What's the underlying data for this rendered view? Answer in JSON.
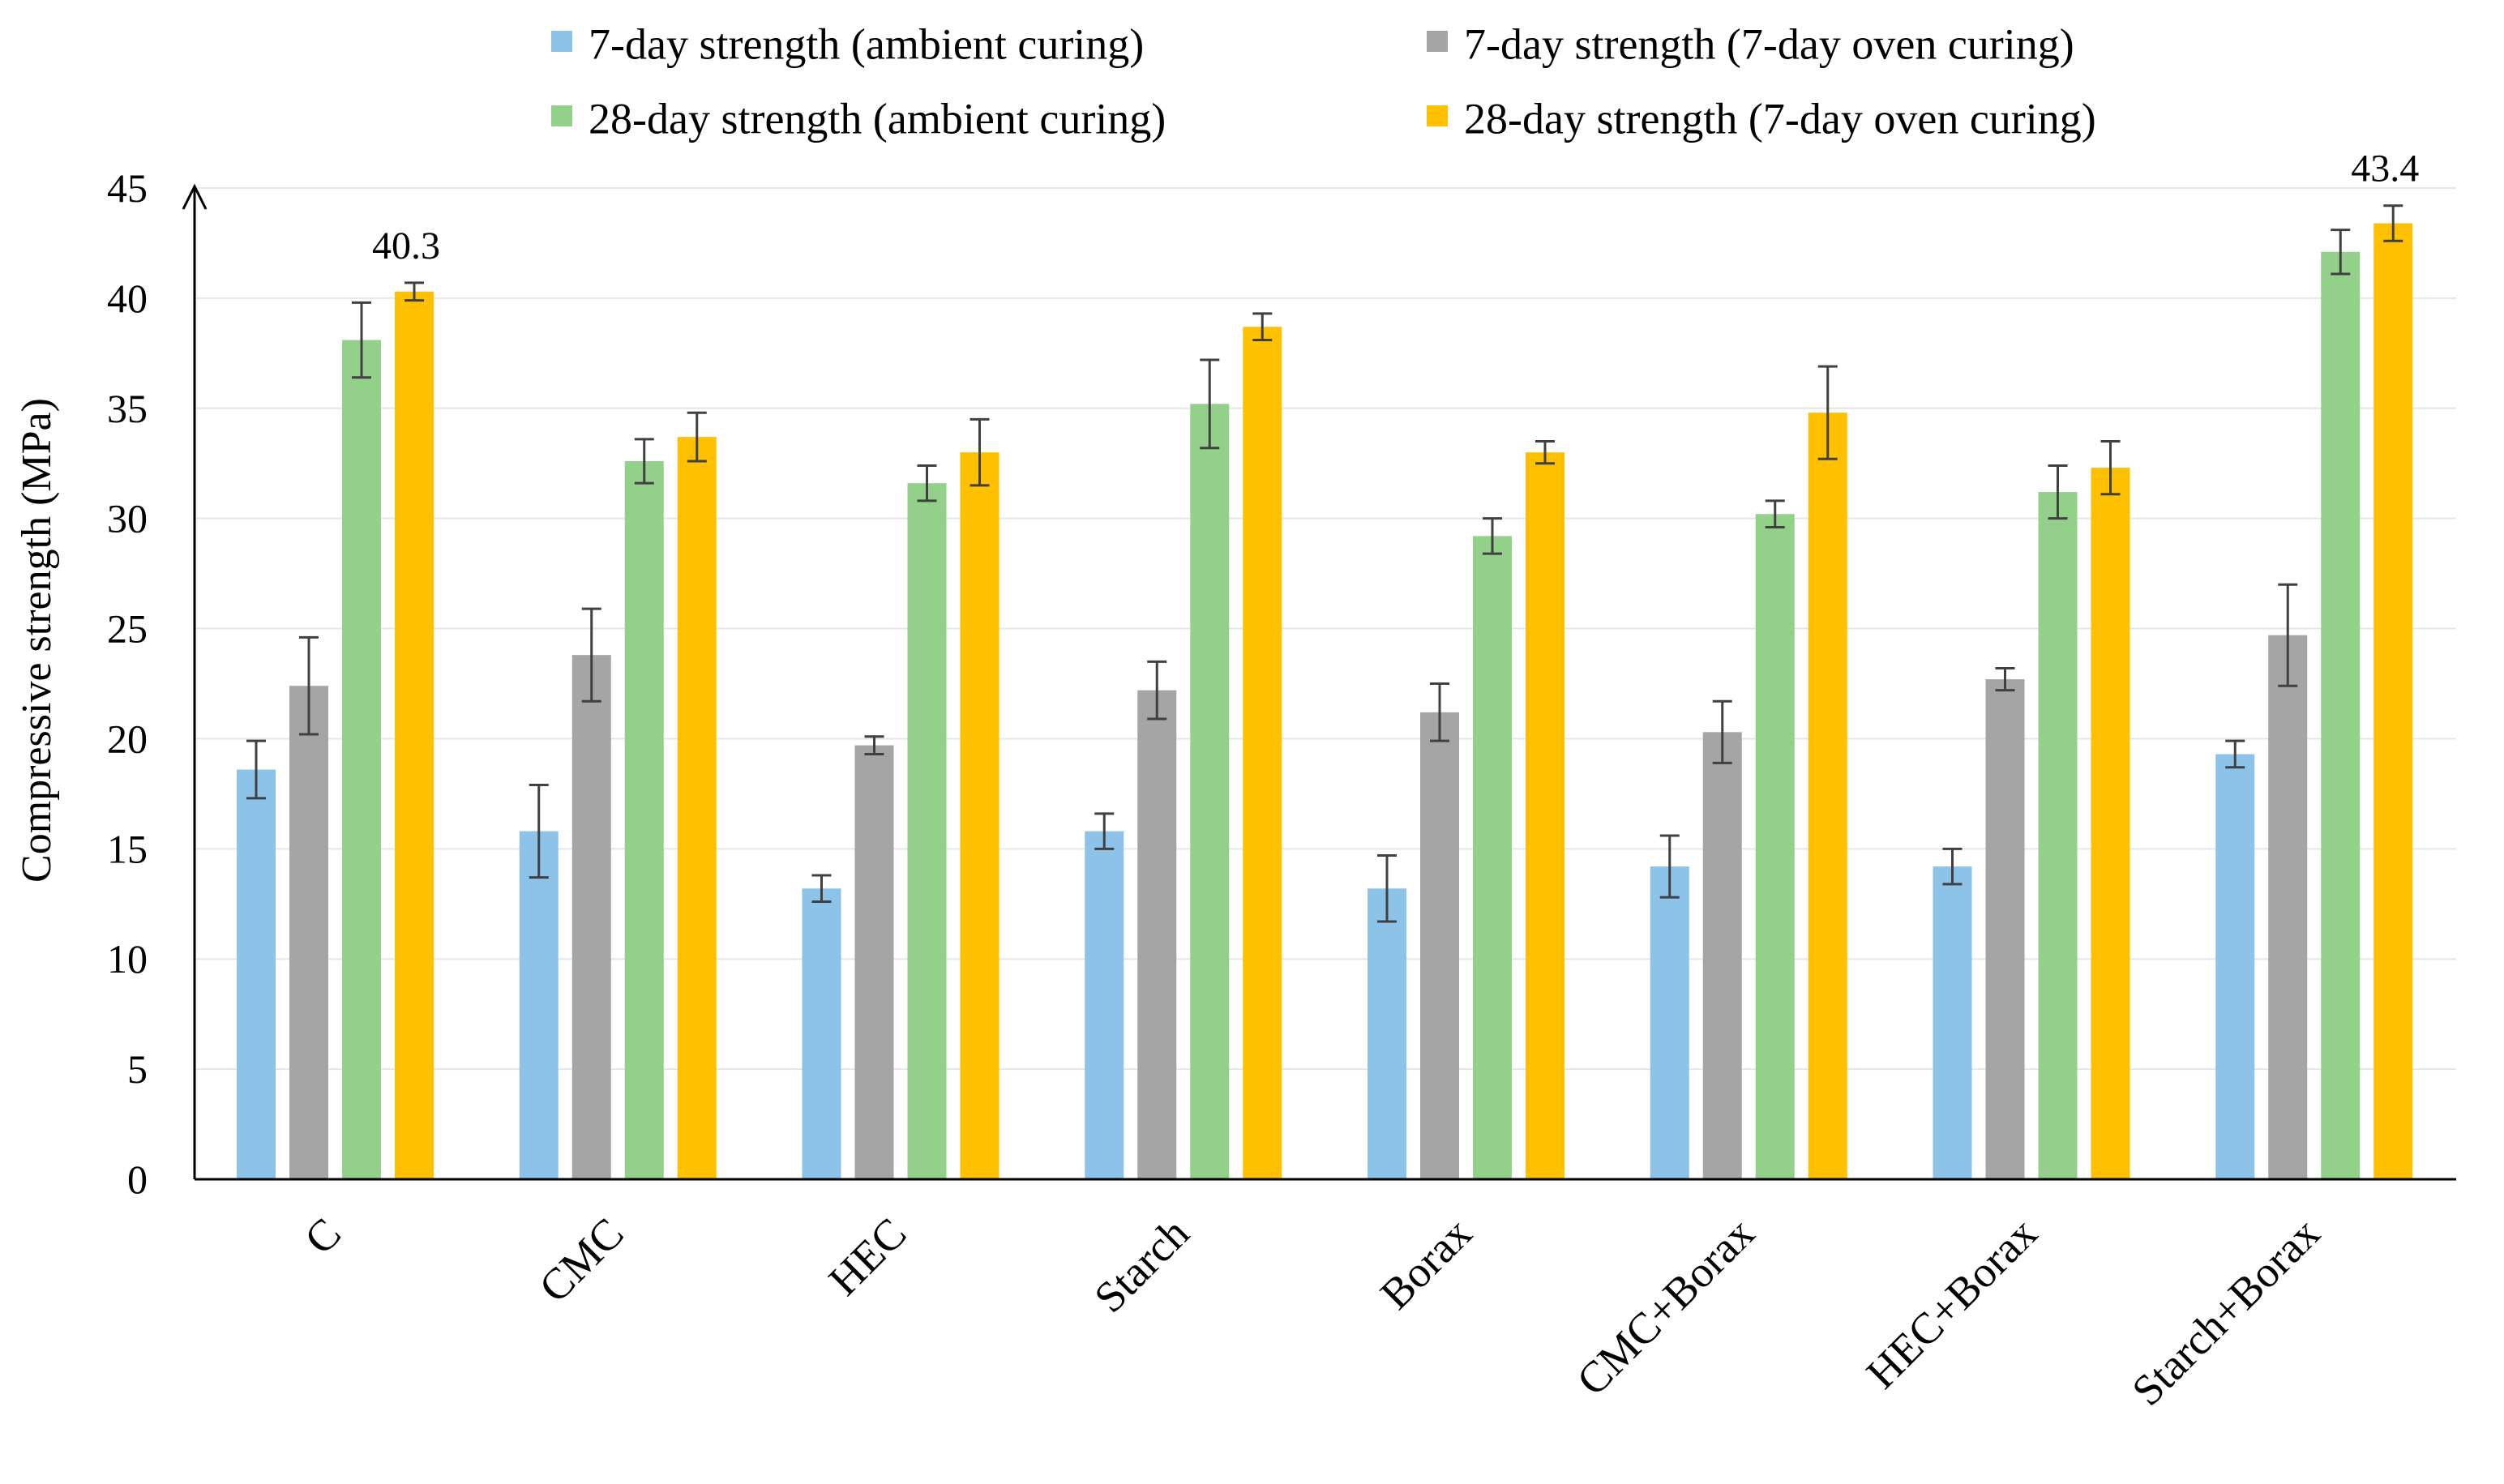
{
  "chart_data": {
    "type": "bar",
    "title": "",
    "xlabel": "",
    "ylabel": "Compressive strength (MPa)",
    "ylim": [
      0,
      45
    ],
    "yticks": [
      0,
      5,
      10,
      15,
      20,
      25,
      30,
      35,
      40,
      45
    ],
    "grid": true,
    "legend_position": "top",
    "categories": [
      "C",
      "CMC",
      "HEC",
      "Starch",
      "Borax",
      "CMC+Borax",
      "HEC+Borax",
      "Starch+Borax"
    ],
    "series": [
      {
        "name": "7-day strength (ambient curing)",
        "color": "#8dc3e8",
        "values": [
          18.6,
          15.8,
          13.2,
          15.8,
          13.2,
          14.2,
          14.2,
          19.3
        ],
        "errors": [
          1.3,
          2.1,
          0.6,
          0.8,
          1.5,
          1.4,
          0.8,
          0.6
        ]
      },
      {
        "name": "7-day strength (7-day oven curing)",
        "color": "#a5a5a5",
        "values": [
          22.4,
          23.8,
          19.7,
          22.2,
          21.2,
          20.3,
          22.7,
          24.7
        ],
        "errors": [
          2.2,
          2.1,
          0.4,
          1.3,
          1.3,
          1.4,
          0.5,
          2.3
        ]
      },
      {
        "name": "28-day strength (ambient curing)",
        "color": "#93d18a",
        "values": [
          38.1,
          32.6,
          31.6,
          35.2,
          29.2,
          30.2,
          31.2,
          42.1
        ],
        "errors": [
          1.7,
          1.0,
          0.8,
          2.0,
          0.8,
          0.6,
          1.2,
          1.0
        ]
      },
      {
        "name": "28-day strength (7-day oven curing)",
        "color": "#ffc000",
        "values": [
          40.3,
          33.7,
          33.0,
          38.7,
          33.0,
          34.8,
          32.3,
          43.4
        ],
        "errors": [
          0.4,
          1.1,
          1.5,
          0.6,
          0.5,
          2.1,
          1.2,
          0.8
        ]
      }
    ],
    "annotations": [
      {
        "text": "40.3",
        "category": "C",
        "series": 3
      },
      {
        "text": "43.4",
        "category": "Starch+Borax",
        "series": 3
      }
    ]
  }
}
